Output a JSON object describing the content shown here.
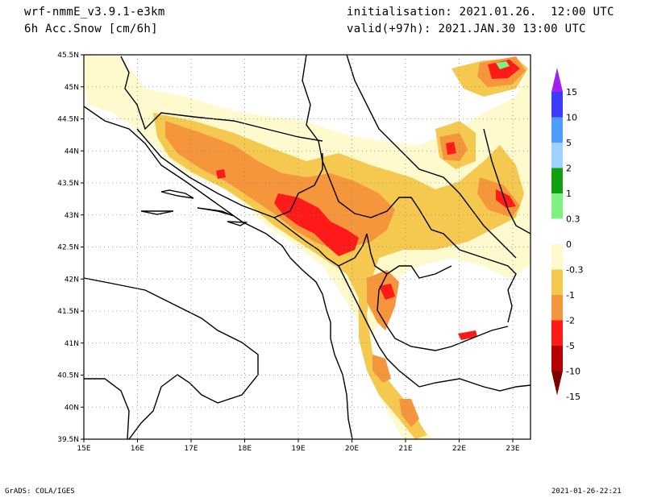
{
  "header": {
    "model": "wrf-nmmE_v3.9.1-e3km",
    "field": "6h Acc.Snow [cm/6h]",
    "init": "initialisation: 2021.01.26.  12:00 UTC",
    "valid": "valid(+97h): 2021.JAN.30 13:00 UTC"
  },
  "footer": {
    "credit": "GrADS: COLA/IGES",
    "timestamp": "2021-01-26-22:21"
  },
  "map": {
    "lat_ticks": [
      "45.5N",
      "45N",
      "44.5N",
      "44N",
      "43.5N",
      "43N",
      "42.5N",
      "42N",
      "41.5N",
      "41N",
      "40.5N",
      "40N",
      "39.5N"
    ],
    "lon_ticks": [
      "15E",
      "16E",
      "17E",
      "18E",
      "19E",
      "20E",
      "21E",
      "22E",
      "23E"
    ]
  },
  "legend": {
    "labels": [
      "15",
      "10",
      "5",
      "2",
      "1",
      "0.3",
      "0",
      "-0.3",
      "-1",
      "-2",
      "-5",
      "-10",
      "-15"
    ],
    "colors": [
      "#a020f0",
      "#3c3cff",
      "#4d9dff",
      "#a0d2ff",
      "#10a010",
      "#80f080",
      "#ffffff",
      "#fffacd",
      "#f5c850",
      "#f5963c",
      "#ff1a1a",
      "#b40000",
      "#7a0000"
    ]
  },
  "colors": {
    "light": "#fffacd",
    "yellow": "#f5c850",
    "orange": "#f5963c",
    "red": "#ff1a1a",
    "darkred": "#b40000",
    "green": "#80f080"
  }
}
